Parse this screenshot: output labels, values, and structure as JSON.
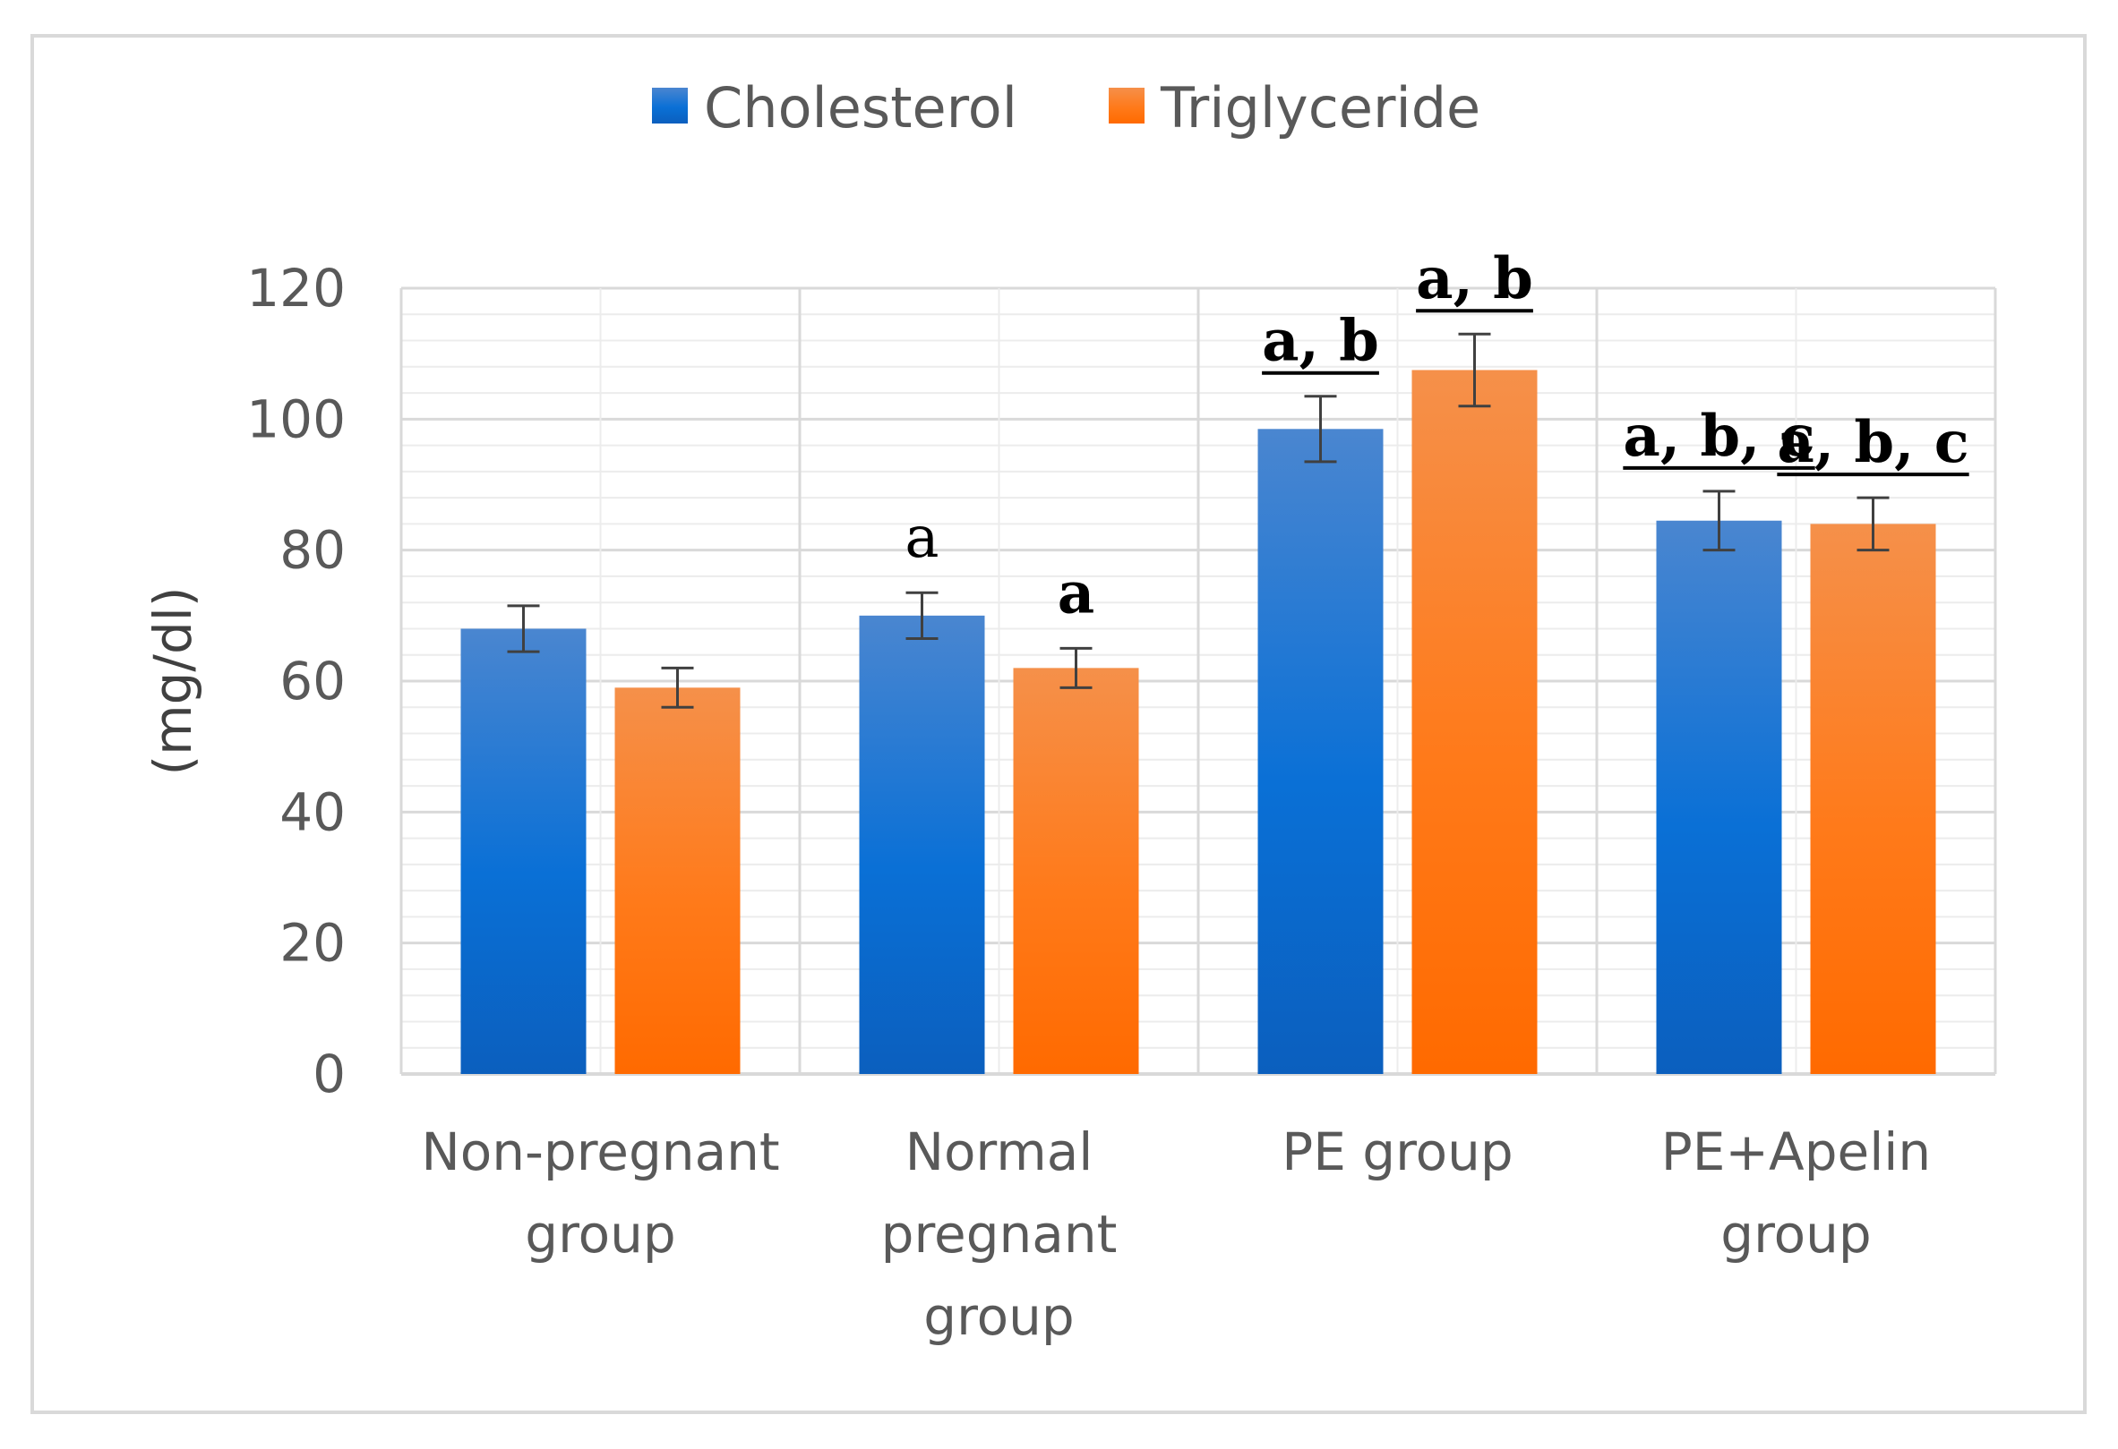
{
  "chart_data": {
    "type": "bar",
    "title": "",
    "xlabel": "",
    "ylabel": "(mg/dl)",
    "ylim": [
      0,
      120
    ],
    "y_major_step": 20,
    "y_minor_step": 4,
    "grid": true,
    "legend_position": "top-center",
    "categories": [
      [
        "Non-pregnant",
        "group"
      ],
      [
        "Normal",
        "pregnant",
        "group"
      ],
      [
        "PE group"
      ],
      [
        "PE+Apelin",
        "group"
      ]
    ],
    "series": [
      {
        "name": "Cholesterol",
        "color_top": "#4a86d0",
        "color_mid": "#0a70d6",
        "color_bottom": "#0b5fbe",
        "values": [
          68,
          70,
          98.5,
          84.5
        ],
        "errors": [
          3.5,
          3.5,
          5,
          4.5
        ],
        "annotations": [
          null,
          {
            "text": "a",
            "bold": false,
            "underline": false
          },
          {
            "text": "a, b",
            "bold": true,
            "underline": true
          },
          {
            "text": "a, b, c",
            "bold": true,
            "underline": true
          }
        ]
      },
      {
        "name": "Triglyceride",
        "color_top": "#f5904a",
        "color_mid": "#ff7a1a",
        "color_bottom": "#ff6a00",
        "values": [
          59,
          62,
          107.5,
          84
        ],
        "errors": [
          3,
          3,
          5.5,
          4
        ],
        "annotations": [
          null,
          {
            "text": "a",
            "bold": true,
            "underline": false
          },
          {
            "text": "a, b",
            "bold": true,
            "underline": true
          },
          {
            "text": "a, b, c",
            "bold": true,
            "underline": true
          }
        ]
      }
    ]
  }
}
